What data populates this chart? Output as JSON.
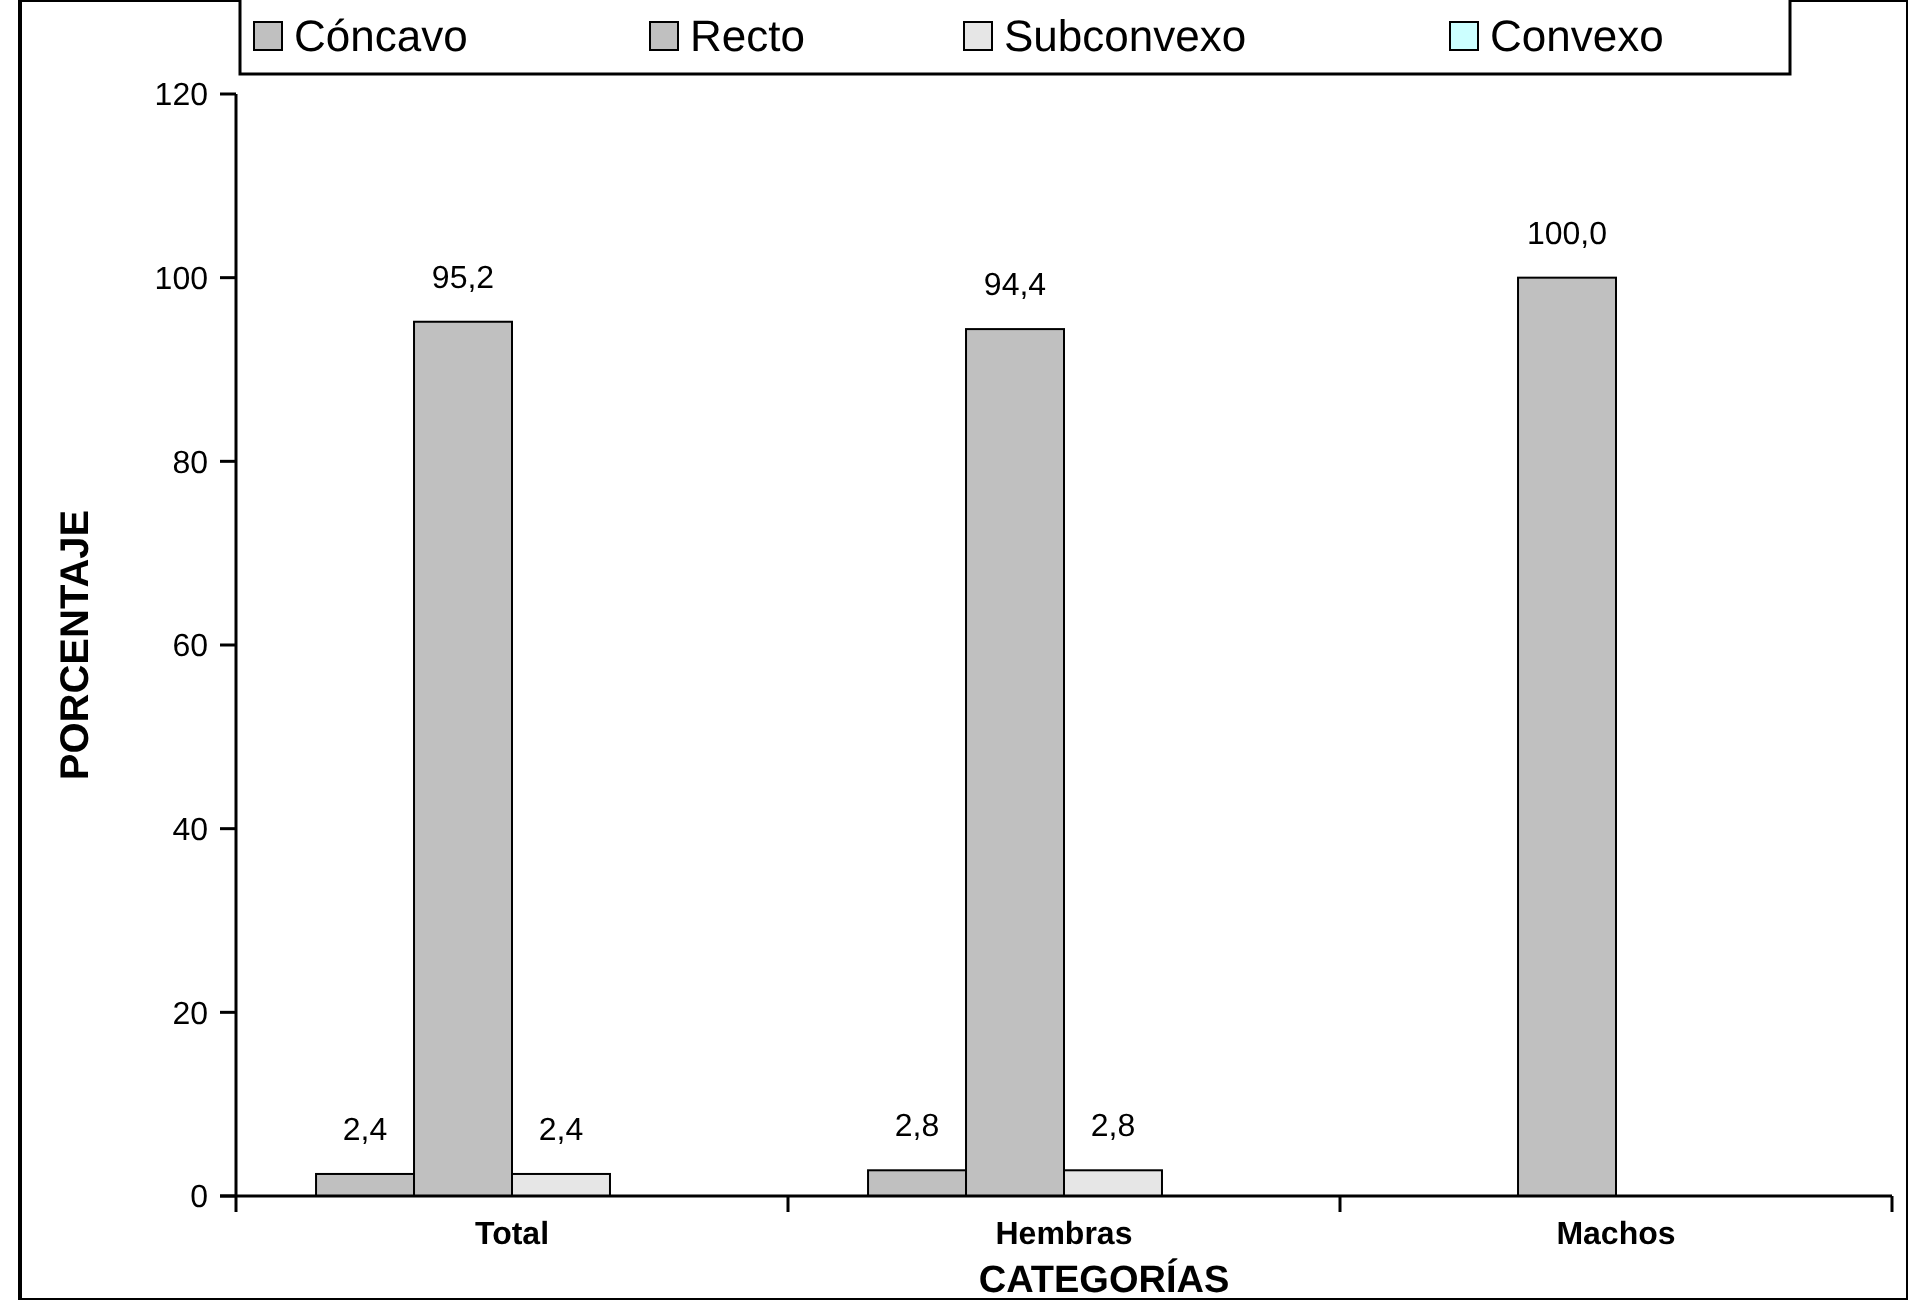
{
  "chart_data": {
    "type": "bar",
    "categories": [
      "Total",
      "Hembras",
      "Machos"
    ],
    "xlabel": "CATEGORÍAS",
    "ylabel": "PORCENTAJE",
    "ylim": [
      0,
      120
    ],
    "yticks": [
      0,
      20,
      40,
      60,
      80,
      100,
      120
    ],
    "legend": "top",
    "grid": false,
    "series": [
      {
        "name": "Cóncavo",
        "color": "#c0c0c0",
        "values": [
          2.4,
          2.8,
          0
        ],
        "value_labels": [
          "2,4",
          "2,8",
          null
        ]
      },
      {
        "name": "Recto",
        "color": "#c0c0c0",
        "values": [
          95.2,
          94.4,
          100
        ],
        "value_labels": [
          "95,2",
          "94,4",
          "100,0"
        ]
      },
      {
        "name": "Subconvexo",
        "color": "#e6e6e6",
        "values": [
          2.4,
          2.8,
          0
        ],
        "value_labels": [
          "2,4",
          "2,8",
          null
        ]
      },
      {
        "name": "Convexo",
        "color": "#ccffff",
        "values": [
          0,
          0,
          0
        ],
        "value_labels": [
          null,
          null,
          null
        ]
      }
    ]
  }
}
